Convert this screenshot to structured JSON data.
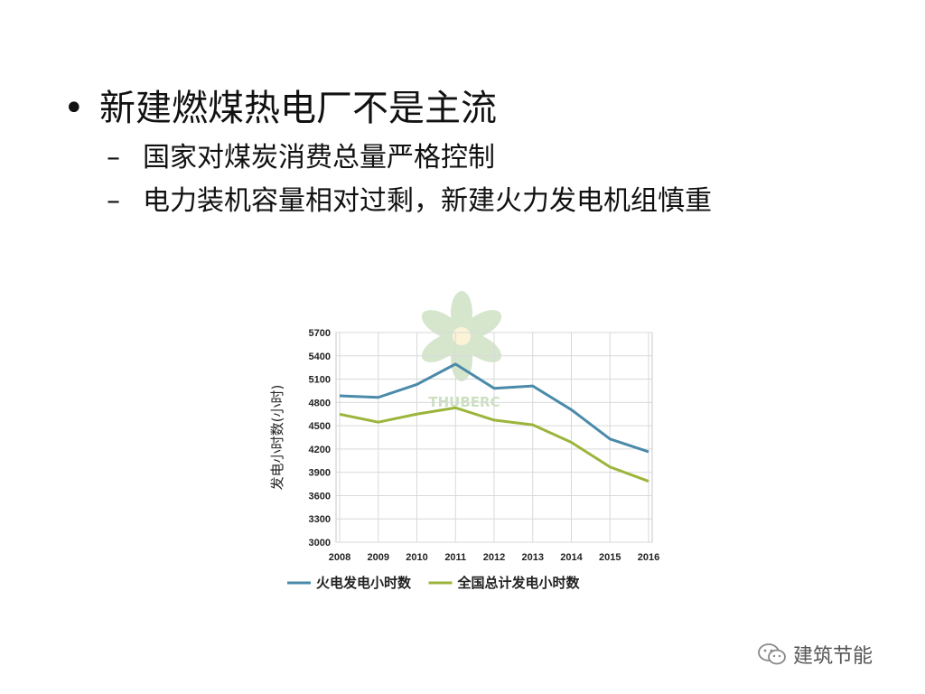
{
  "bullets": {
    "main": "新建燃煤热电厂不是主流",
    "main_marker": "•",
    "sub_marker": "–",
    "sub": [
      "国家对煤炭消费总量严格控制",
      "电力装机容量相对过剩，新建火力发电机组慎重"
    ]
  },
  "watermark": {
    "logo_text": "THUBERC",
    "account": "建筑节能",
    "icon": "wechat-icon"
  },
  "chart_data": {
    "type": "line",
    "categories": [
      "2008",
      "2009",
      "2010",
      "2011",
      "2012",
      "2013",
      "2014",
      "2015",
      "2016"
    ],
    "ylabel": "发电小时数(小时)",
    "ylim": [
      3000,
      5700
    ],
    "yticks": [
      3000,
      3300,
      3600,
      3900,
      4200,
      4500,
      4800,
      5100,
      5400,
      5700
    ],
    "grid": true,
    "legend": "bottom",
    "series": [
      {
        "name": "火电发电小时数",
        "color": "#4a8aaa",
        "values": [
          4885,
          4865,
          5031,
          5294,
          4982,
          5012,
          4706,
          4329,
          4165
        ]
      },
      {
        "name": "全国总计发电小时数",
        "color": "#9bb53b",
        "values": [
          4648,
          4546,
          4650,
          4731,
          4572,
          4511,
          4286,
          3969,
          3785
        ]
      }
    ]
  }
}
